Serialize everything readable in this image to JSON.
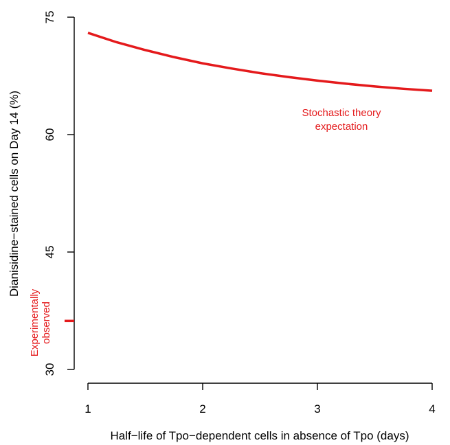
{
  "chart_data": {
    "type": "line",
    "title": "",
    "xlabel": "Half−life of Tpo−dependent cells in absence of Tpo (days)",
    "ylabel": "Dianisidine−stained cells on Day 14 (%)",
    "xlim": [
      1,
      4
    ],
    "ylim": [
      30,
      75
    ],
    "x_ticks": [
      1,
      2,
      3,
      4
    ],
    "x_tick_labels": [
      "1",
      "2",
      "3",
      "4"
    ],
    "y_ticks": [
      30,
      45,
      60,
      75
    ],
    "y_tick_labels": [
      "30",
      "45",
      "60",
      "75"
    ],
    "grid": false,
    "legend": "none",
    "series": [
      {
        "color": "#e41a1c",
        "x": [
          1.0,
          1.25,
          1.5,
          1.75,
          2.0,
          2.25,
          2.5,
          2.75,
          3.0,
          3.25,
          3.5,
          3.75,
          4.0
        ],
        "y": [
          73.0,
          71.8,
          70.8,
          69.9,
          69.1,
          68.45,
          67.85,
          67.35,
          66.9,
          66.5,
          66.15,
          65.85,
          65.6
        ]
      }
    ],
    "observed": {
      "color": "#e41a1c",
      "value": 36.2,
      "label_line1": "Experimentally",
      "label_line2": "observed"
    },
    "annotations": {
      "theory_line1": "Stochastic theory",
      "theory_line2": "expectation",
      "theory_color": "#e41a1c"
    }
  }
}
